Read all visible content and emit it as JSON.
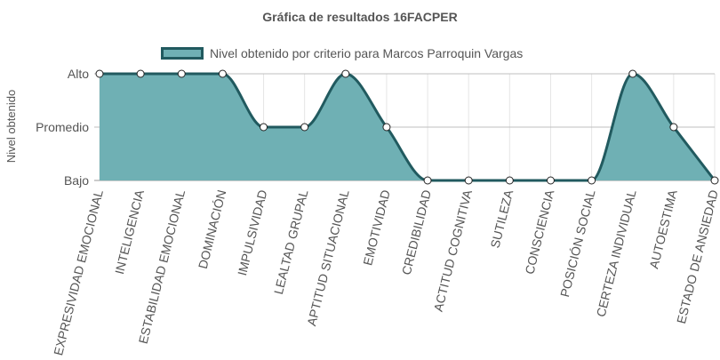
{
  "chart_data": {
    "type": "area",
    "title": "Gráfica de resultados 16FACPER",
    "ylabel": "Nivel obtenido",
    "y_levels": [
      "Bajo",
      "Promedio",
      "Alto"
    ],
    "ylim": [
      0,
      2
    ],
    "grid": true,
    "legend_position": "top",
    "categories": [
      "EXPRESIVIDAD EMOCIONAL",
      "INTELIGENCIA",
      "ESTABILIDAD EMOCIONAL",
      "DOMINACIÓN",
      "IMPULSIVIDAD",
      "LEALTAD GRUPAL",
      "APTITUD SITUACIONAL",
      "EMOTIVIDAD",
      "CREDIBILIDAD",
      "ACTITUD COGNITIVA",
      "SUTILEZA",
      "CONSCIENCIA",
      "POSICIÓN SOCIAL",
      "CERTEZA INDIVIDUAL",
      "AUTOESTIMA",
      "ESTADO DE ANSIEDAD"
    ],
    "series": [
      {
        "name": "Nivel obtenido por criterio para Marcos Parroquin Vargas",
        "values": [
          2,
          2,
          2,
          2,
          1,
          1,
          2,
          1,
          0,
          0,
          0,
          0,
          0,
          2,
          1,
          0
        ]
      }
    ]
  },
  "colors": {
    "fill": "#6fb0b4",
    "line": "#215a5f",
    "point_fill": "#ffffff",
    "grid": "#e5e5e5",
    "axis_line": "#999999",
    "text": "#555555"
  }
}
